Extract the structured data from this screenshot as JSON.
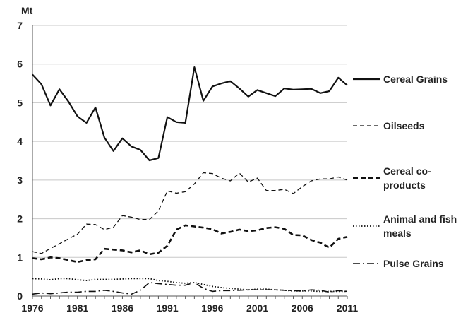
{
  "chart_data": {
    "type": "line",
    "title": "",
    "ylabel": "",
    "y_unit": "Mt",
    "xlabel": "",
    "xlim": [
      1976,
      2011
    ],
    "ylim": [
      0,
      7
    ],
    "y_ticks": [
      0,
      1,
      2,
      3,
      4,
      5,
      6,
      7
    ],
    "x_ticks": [
      1976,
      1981,
      1986,
      1991,
      1996,
      2001,
      2006,
      2011
    ],
    "grid": "horizontal",
    "legend_position": "right",
    "x": [
      1976,
      1977,
      1978,
      1979,
      1980,
      1981,
      1982,
      1983,
      1984,
      1985,
      1986,
      1987,
      1988,
      1989,
      1990,
      1991,
      1992,
      1993,
      1994,
      1995,
      1996,
      1997,
      1998,
      1999,
      2000,
      2001,
      2002,
      2003,
      2004,
      2005,
      2006,
      2007,
      2008,
      2009,
      2010,
      2011
    ],
    "series": [
      {
        "name": "Cereal Grains",
        "style": "solid",
        "color": "#111111",
        "values": [
          5.73,
          5.48,
          4.93,
          5.35,
          5.03,
          4.65,
          4.48,
          4.88,
          4.1,
          3.75,
          4.08,
          3.87,
          3.78,
          3.51,
          3.57,
          4.63,
          4.5,
          4.48,
          5.92,
          5.05,
          5.42,
          5.5,
          5.56,
          5.37,
          5.16,
          5.33,
          5.25,
          5.17,
          5.37,
          5.34,
          5.35,
          5.36,
          5.25,
          5.3,
          5.65,
          5.45
        ]
      },
      {
        "name": "Oilseeds",
        "style": "dashed",
        "color": "#111111",
        "values": [
          1.15,
          1.1,
          1.23,
          1.35,
          1.48,
          1.6,
          1.86,
          1.85,
          1.72,
          1.78,
          2.08,
          2.04,
          1.98,
          1.98,
          2.2,
          2.72,
          2.66,
          2.7,
          2.9,
          3.19,
          3.17,
          3.05,
          2.98,
          3.18,
          2.95,
          3.05,
          2.73,
          2.73,
          2.76,
          2.65,
          2.83,
          2.98,
          3.03,
          3.03,
          3.08,
          3.0
        ]
      },
      {
        "name": "Cereal co-products",
        "style": "dashed-bold",
        "color": "#111111",
        "values": [
          0.98,
          0.95,
          1.0,
          0.98,
          0.93,
          0.88,
          0.93,
          0.95,
          1.22,
          1.2,
          1.18,
          1.13,
          1.18,
          1.08,
          1.12,
          1.3,
          1.72,
          1.83,
          1.8,
          1.77,
          1.73,
          1.62,
          1.66,
          1.72,
          1.68,
          1.7,
          1.76,
          1.78,
          1.74,
          1.58,
          1.57,
          1.45,
          1.38,
          1.25,
          1.48,
          1.53
        ]
      },
      {
        "name": "Animal and fish meals",
        "style": "dotted",
        "color": "#111111",
        "values": [
          0.45,
          0.44,
          0.42,
          0.45,
          0.45,
          0.42,
          0.4,
          0.43,
          0.43,
          0.43,
          0.44,
          0.45,
          0.45,
          0.45,
          0.4,
          0.38,
          0.35,
          0.33,
          0.35,
          0.3,
          0.25,
          0.22,
          0.2,
          0.18,
          0.16,
          0.18,
          0.18,
          0.16,
          0.15,
          0.13,
          0.13,
          0.13,
          0.12,
          0.12,
          0.12,
          0.12
        ]
      },
      {
        "name": "Pulse Grains",
        "style": "dash-dot",
        "color": "#111111",
        "values": [
          0.05,
          0.08,
          0.06,
          0.08,
          0.1,
          0.1,
          0.12,
          0.12,
          0.15,
          0.12,
          0.08,
          0.05,
          0.15,
          0.35,
          0.32,
          0.3,
          0.28,
          0.28,
          0.35,
          0.2,
          0.12,
          0.14,
          0.14,
          0.15,
          0.16,
          0.16,
          0.16,
          0.16,
          0.15,
          0.14,
          0.13,
          0.16,
          0.15,
          0.1,
          0.14,
          0.12
        ]
      }
    ]
  }
}
